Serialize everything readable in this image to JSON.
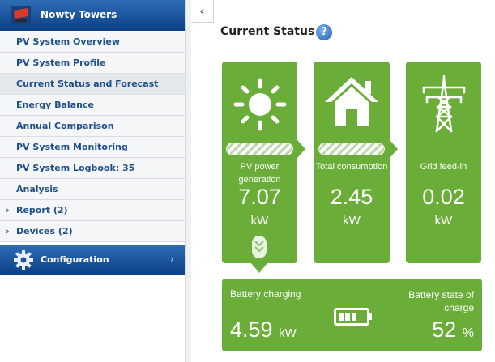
{
  "sidebar": {
    "title": "Nowty Towers",
    "items": [
      {
        "label": "PV System Overview"
      },
      {
        "label": "PV System Profile"
      },
      {
        "label": "Current Status and Forecast"
      },
      {
        "label": "Energy Balance"
      },
      {
        "label": "Annual Comparison"
      },
      {
        "label": "PV System Monitoring"
      },
      {
        "label": "PV System Logbook: 35"
      },
      {
        "label": "Analysis"
      },
      {
        "label": "Report (2)"
      },
      {
        "label": "Devices (2)"
      }
    ],
    "configuration": "Configuration"
  },
  "main": {
    "title": "Current Status",
    "tiles": [
      {
        "label": "PV power generation",
        "value": "7.07",
        "unit": "kW"
      },
      {
        "label": "Total consumption",
        "value": "2.45",
        "unit": "kW"
      },
      {
        "label": "Grid feed-in",
        "value": "0.02",
        "unit": "kW"
      }
    ],
    "battery": {
      "charging_label": "Battery charging",
      "charging_value": "4.59",
      "charging_unit": "kW",
      "soc_label": "Battery state of charge",
      "soc_value": "52",
      "soc_unit": "%"
    }
  },
  "icons": [
    "plant-icon",
    "gear-icon",
    "help-icon",
    "sun-icon",
    "house-icon",
    "power-tower-icon",
    "battery-icon"
  ],
  "colors": {
    "accent_green": "#6aad38",
    "header_blue": "#1a559e",
    "menu_text": "#1e4f8c"
  }
}
